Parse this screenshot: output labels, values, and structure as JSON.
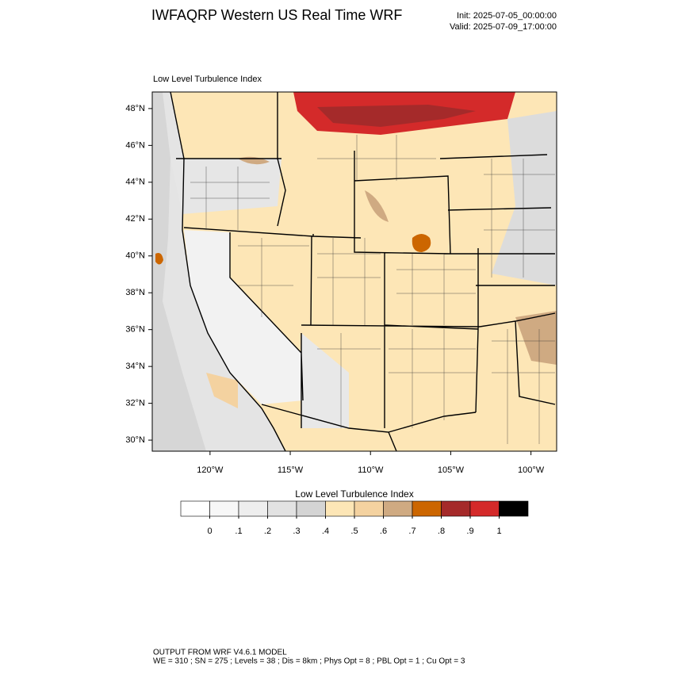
{
  "title": "IWFAQRP Western US Real Time WRF",
  "init": "Init: 2025-07-05_00:00:00",
  "valid": "Valid: 2025-07-09_17:00:00",
  "map": {
    "subtitle": "Low Level Turbulence Index",
    "ylim": [
      29.4,
      48.9
    ],
    "xlim": [
      -123.6,
      -98.4
    ],
    "yticks": [
      {
        "value": 48,
        "label": "48°N"
      },
      {
        "value": 46,
        "label": "46°N"
      },
      {
        "value": 44,
        "label": "44°N"
      },
      {
        "value": 42,
        "label": "42°N"
      },
      {
        "value": 40,
        "label": "40°N"
      },
      {
        "value": 38,
        "label": "38°N"
      },
      {
        "value": 36,
        "label": "36°N"
      },
      {
        "value": 34,
        "label": "34°N"
      },
      {
        "value": 32,
        "label": "32°N"
      },
      {
        "value": 30,
        "label": "30°N"
      }
    ],
    "xticks": [
      {
        "value": -120,
        "label": "120°W"
      },
      {
        "value": -115,
        "label": "115°W"
      },
      {
        "value": -110,
        "label": "110°W"
      },
      {
        "value": -105,
        "label": "105°W"
      },
      {
        "value": -100,
        "label": "100°W"
      }
    ]
  },
  "colorbar": {
    "title": "Low Level Turbulence Index",
    "levels": [
      0,
      {
        "value": 0.1,
        "label": ".1"
      },
      {
        "value": 0.2,
        "label": ".2"
      },
      {
        "value": 0.3,
        "label": ".3"
      },
      {
        "value": 0.4,
        "label": ".4"
      },
      {
        "value": 0.5,
        "label": ".5"
      },
      {
        "value": 0.6,
        "label": ".6"
      },
      {
        "value": 0.7,
        "label": ".7"
      },
      {
        "value": 0.8,
        "label": ".8"
      },
      {
        "value": 0.9,
        "label": ".9"
      },
      1
    ],
    "colors": [
      "#ffffff",
      "#f7f7f7",
      "#eeeeee",
      "#e2e2e2",
      "#d4d4d4",
      "#fde6b6",
      "#f4d2a0",
      "#cfaa82",
      "#cc6600",
      "#a52a2a",
      "#d42a2a",
      "#000000"
    ]
  },
  "footer": [
    "OUTPUT FROM WRF V4.6.1 MODEL",
    "WE = 310 ; SN = 275 ; Levels = 38 ; Dis = 8km ; Phys Opt = 8 ; PBL Opt = 1 ; Cu Opt = 3"
  ]
}
